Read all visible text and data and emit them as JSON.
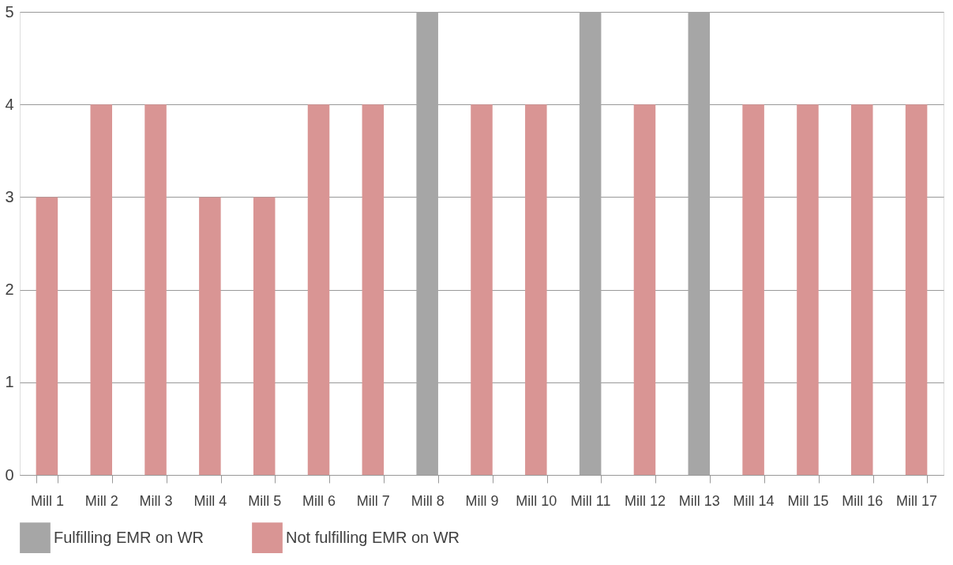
{
  "chart_data": {
    "type": "bar",
    "categories": [
      "Mill 1",
      "Mill 2",
      "Mill 3",
      "Mill 4",
      "Mill 5",
      "Mill 6",
      "Mill 7",
      "Mill 8",
      "Mill 9",
      "Mill 10",
      "Mill 11",
      "Mill 12",
      "Mill 13",
      "Mill 14",
      "Mill 15",
      "Mill 16",
      "Mill 17"
    ],
    "series": [
      {
        "name": "Fulfilling EMR on WR",
        "color": "#a6a6a6",
        "values": [
          null,
          null,
          null,
          null,
          null,
          null,
          null,
          5,
          null,
          null,
          5,
          null,
          5,
          null,
          null,
          null,
          null
        ]
      },
      {
        "name": "Not fulfilling EMR on WR",
        "color": "#d99594",
        "values": [
          3,
          4,
          4,
          3,
          3,
          4,
          4,
          null,
          4,
          4,
          null,
          4,
          null,
          4,
          4,
          4,
          4
        ]
      }
    ],
    "ylim": [
      0,
      5
    ],
    "yticks": [
      0,
      1,
      2,
      3,
      4,
      5
    ],
    "grid": "y",
    "legend": "bottom"
  }
}
